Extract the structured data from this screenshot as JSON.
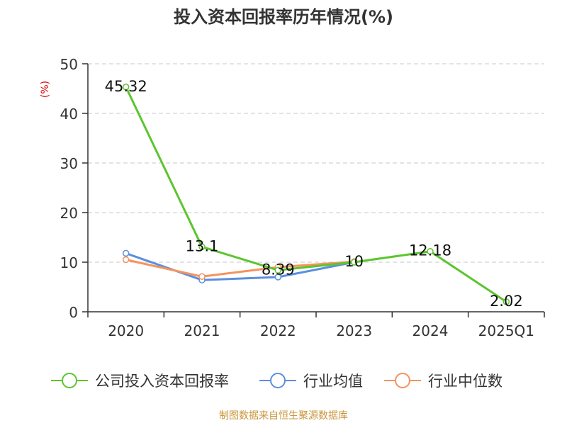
{
  "colors": {
    "company": "#5cc52e",
    "industry_avg": "#5b8ee0",
    "industry_median": "#f4935e",
    "axis": "#333333",
    "grid": "#c8c8c8",
    "unit": "#e00000",
    "source": "#c8963c"
  },
  "source_text": "制图数据来自恒生聚源数据库",
  "chart_data": {
    "type": "line",
    "title": "投入资本回报率历年情况(%)",
    "ylabel": "(%)",
    "xlabel": "",
    "categories": [
      "2020",
      "2021",
      "2022",
      "2023",
      "2024",
      "2025Q1"
    ],
    "ylim": [
      0,
      50
    ],
    "yticks": [
      0,
      10,
      20,
      30,
      40,
      50
    ],
    "grid": true,
    "legend_position": "bottom",
    "series": [
      {
        "name": "公司投入资本回报率",
        "color_key": "company",
        "values": [
          45.32,
          13.1,
          8.39,
          10,
          12.18,
          2.02
        ],
        "labels": [
          "45.32",
          "13.1",
          "8.39",
          "10",
          "12.18",
          "2.02"
        ]
      },
      {
        "name": "行业均值",
        "color_key": "industry_avg",
        "values": [
          11.8,
          6.4,
          7.0,
          10.0,
          null,
          null
        ]
      },
      {
        "name": "行业中位数",
        "color_key": "industry_median",
        "values": [
          10.5,
          7.1,
          9.0,
          10.1,
          null,
          null
        ]
      }
    ]
  }
}
